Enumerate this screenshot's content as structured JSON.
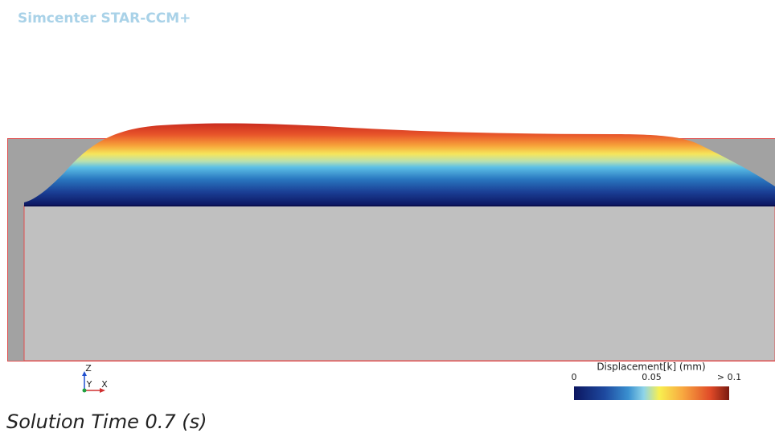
{
  "header": {
    "title": "Simcenter STAR-CCM+"
  },
  "triad": {
    "z": "Z",
    "y": "Y",
    "x": "X"
  },
  "legend": {
    "title": "Displacement[k] (mm)",
    "range": [
      0,
      0.1
    ],
    "ticks": [
      0,
      0.05,
      {
        "value": 0.1,
        "label": "> 0.1"
      }
    ]
  },
  "footer": {
    "solution_time": "Solution Time 0.7 (s)"
  }
}
